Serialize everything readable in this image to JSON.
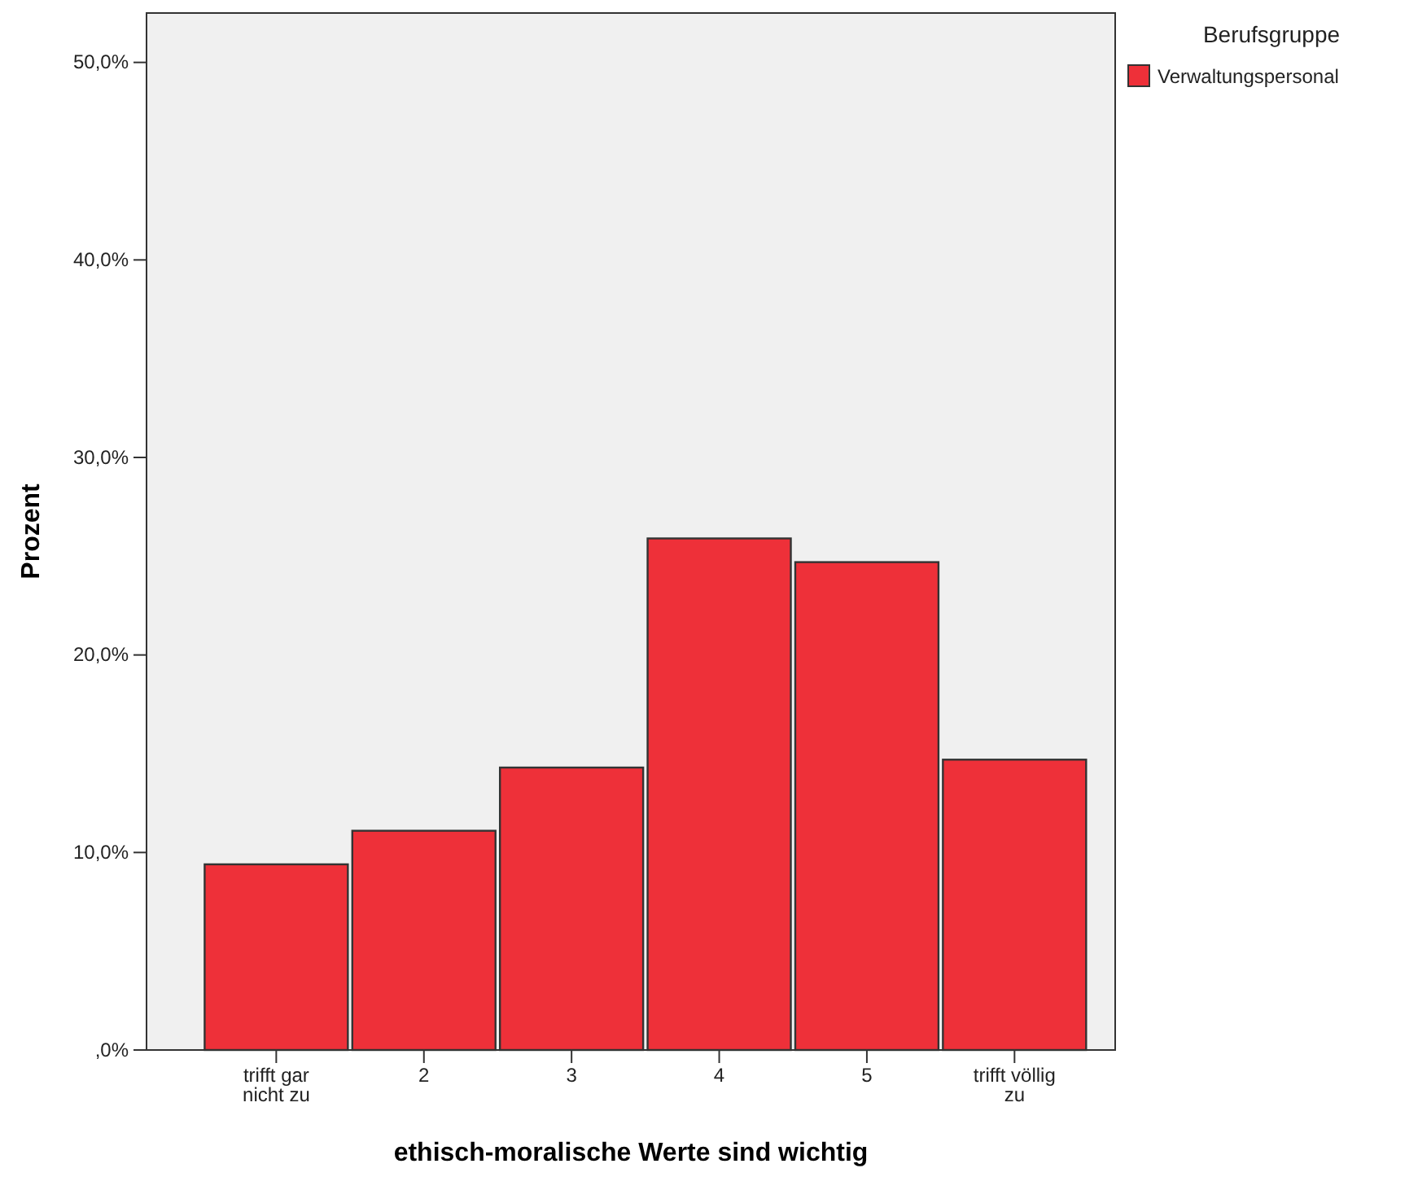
{
  "chart_data": {
    "type": "bar",
    "xlabel": "ethisch-moralische Werte sind wichtig",
    "ylabel": "Prozent",
    "legend_title": "Berufsgruppe",
    "legend": "top right",
    "categories": [
      "trifft gar nicht zu",
      "2",
      "3",
      "4",
      "5",
      "trifft völlig zu"
    ],
    "series": [
      {
        "name": "Verwaltungspersonal",
        "color": "#ee3039",
        "values": [
          9.4,
          11.1,
          14.3,
          25.9,
          24.7,
          14.7
        ]
      }
    ],
    "ylim": [
      0,
      52.5
    ],
    "yticks": [
      {
        "value": 0,
        "label": ",0%"
      },
      {
        "value": 10,
        "label": "10,0%"
      },
      {
        "value": 20,
        "label": "20,0%"
      },
      {
        "value": 30,
        "label": "30,0%"
      },
      {
        "value": 40,
        "label": "40,0%"
      },
      {
        "value": 50,
        "label": "50,0%"
      }
    ],
    "grid": false
  }
}
